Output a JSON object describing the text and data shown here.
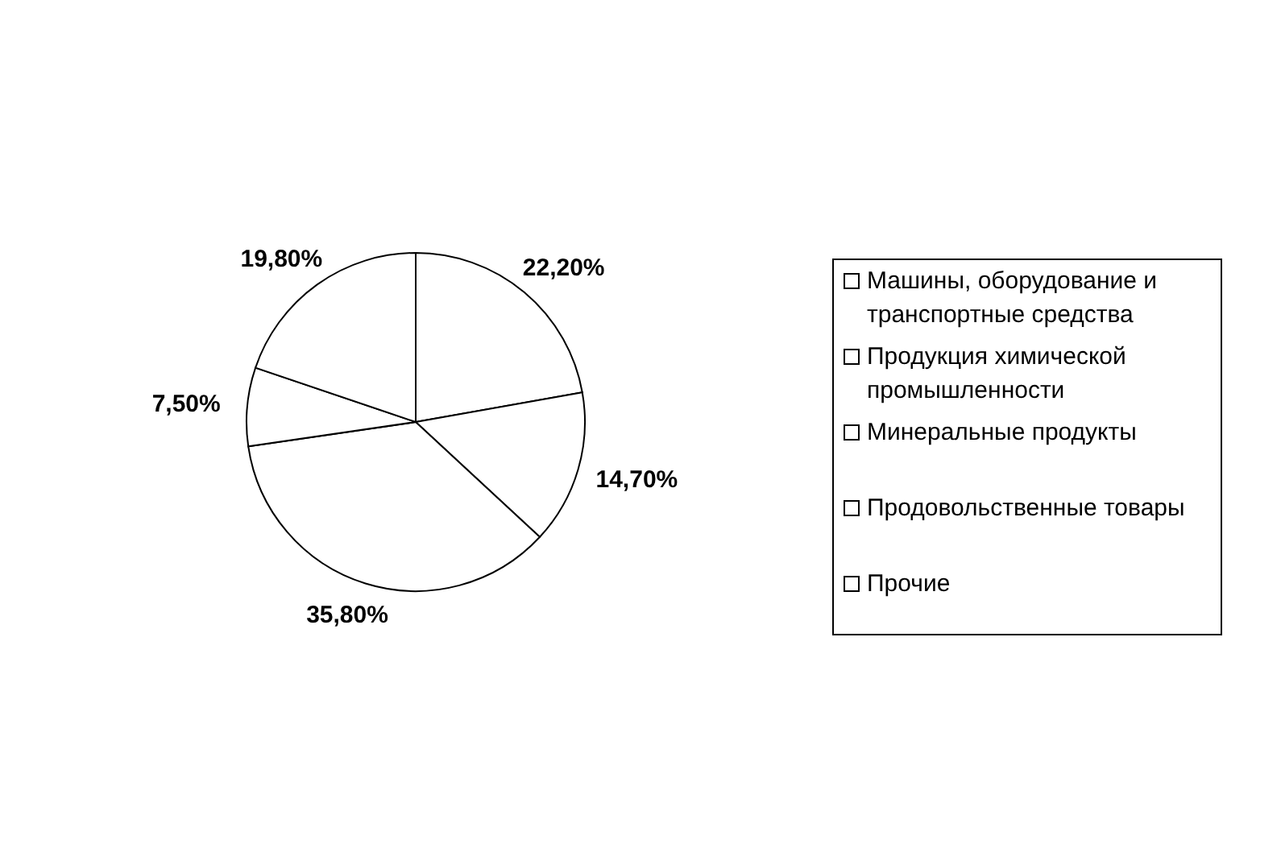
{
  "chart_data": {
    "type": "pie",
    "categories": [
      "Машины, оборудование и транспортные средства",
      "Продукция химической промышленности",
      "Минеральные продукты",
      "Продовольственные товары",
      "Прочие"
    ],
    "values": [
      22.2,
      14.7,
      35.8,
      7.5,
      19.8
    ],
    "value_labels": [
      "22,20%",
      "14,70%",
      "35,80%",
      "7,50%",
      "19,80%"
    ],
    "colors": [
      "#ffffff",
      "#ffffff",
      "#ffffff",
      "#ffffff",
      "#ffffff"
    ],
    "legend": "right"
  }
}
